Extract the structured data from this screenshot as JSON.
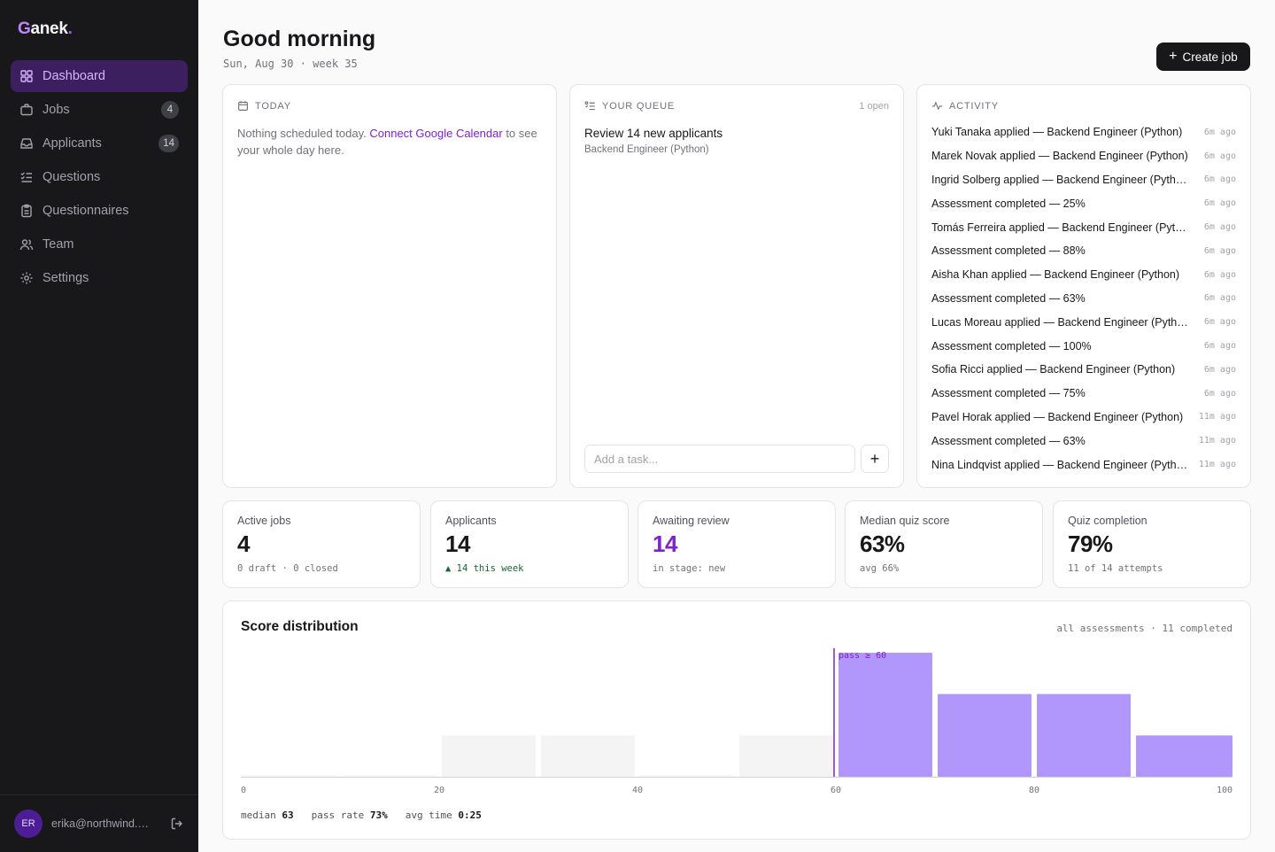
{
  "app": {
    "logo_first": "G",
    "logo_rest": "anek",
    "logo_dot": "."
  },
  "sidebar": {
    "items": [
      {
        "label": "Dashboard",
        "icon": "grid-icon",
        "active": true
      },
      {
        "label": "Jobs",
        "icon": "briefcase-icon",
        "count": "4"
      },
      {
        "label": "Applicants",
        "icon": "inbox-icon",
        "count": "14"
      },
      {
        "label": "Questions",
        "icon": "list-checks-icon"
      },
      {
        "label": "Questionnaires",
        "icon": "clipboard-icon"
      },
      {
        "label": "Team",
        "icon": "users-icon"
      },
      {
        "label": "Settings",
        "icon": "gear-icon"
      }
    ],
    "user": {
      "initials": "ER",
      "email": "erika@northwind.e..."
    }
  },
  "header": {
    "greeting": "Good morning",
    "date": "Sun, Aug 30 · week 35",
    "create_label": "Create job"
  },
  "today": {
    "heading": "TODAY",
    "text_before": "Nothing scheduled today. ",
    "link": "Connect Google Calendar",
    "text_after": " to see your whole day here."
  },
  "queue": {
    "heading": "YOUR QUEUE",
    "open_count": "1 open",
    "item_title": "Review 14 new applicants",
    "item_sub": "Backend Engineer (Python)",
    "task_placeholder": "Add a task...",
    "add_label": "+"
  },
  "activity": {
    "heading": "ACTIVITY",
    "items": [
      {
        "text": "Yuki Tanaka applied — Backend Engineer (Python)",
        "time": "6m ago"
      },
      {
        "text": "Marek Novak applied — Backend Engineer (Python)",
        "time": "6m ago"
      },
      {
        "text": "Ingrid Solberg applied — Backend Engineer (Python)",
        "time": "6m ago"
      },
      {
        "text": "Assessment completed — 25%",
        "time": "6m ago"
      },
      {
        "text": "Tomás Ferreira applied — Backend Engineer (Python)",
        "time": "6m ago"
      },
      {
        "text": "Assessment completed — 88%",
        "time": "6m ago"
      },
      {
        "text": "Aisha Khan applied — Backend Engineer (Python)",
        "time": "6m ago"
      },
      {
        "text": "Assessment completed — 63%",
        "time": "6m ago"
      },
      {
        "text": "Lucas Moreau applied — Backend Engineer (Python)",
        "time": "6m ago"
      },
      {
        "text": "Assessment completed — 100%",
        "time": "6m ago"
      },
      {
        "text": "Sofia Ricci applied — Backend Engineer (Python)",
        "time": "6m ago"
      },
      {
        "text": "Assessment completed — 75%",
        "time": "6m ago"
      },
      {
        "text": "Pavel Horak applied — Backend Engineer (Python)",
        "time": "11m ago"
      },
      {
        "text": "Assessment completed — 63%",
        "time": "11m ago"
      },
      {
        "text": "Nina Lindqvist applied — Backend Engineer (Python)",
        "time": "11m ago"
      }
    ]
  },
  "stats": [
    {
      "label": "Active jobs",
      "value": "4",
      "sub": "0 draft · 0 closed"
    },
    {
      "label": "Applicants",
      "value": "14",
      "sub": "▲ 14 this week"
    },
    {
      "label": "Awaiting review",
      "value": "14",
      "sub": "in stage: new"
    },
    {
      "label": "Median quiz score",
      "value": "63%",
      "sub": "avg 66%"
    },
    {
      "label": "Quiz completion",
      "value": "79%",
      "sub": "11 of 14 attempts"
    }
  ],
  "colors": {
    "accent": "#7e22ce",
    "bar_pass": "#b197fc",
    "bar_fail": "#f4f4f5",
    "sidebar_bg": "#18181b"
  },
  "chart_data": {
    "type": "bar",
    "title": "Score distribution",
    "meta": "all assessments · 11 completed",
    "bins": [
      "0-10",
      "10-20",
      "20-30",
      "30-40",
      "40-50",
      "50-60",
      "60-70",
      "70-80",
      "80-90",
      "90-100"
    ],
    "values": [
      0,
      0,
      1,
      1,
      0,
      1,
      3,
      2,
      2,
      1
    ],
    "xticks": [
      "0",
      "20",
      "40",
      "60",
      "80",
      "100"
    ],
    "xlim": [
      0,
      100
    ],
    "threshold": 60,
    "threshold_label": "pass ≥ 60",
    "footer": {
      "median_label": "median",
      "median": "63",
      "pass_label": "pass rate",
      "pass": "73%",
      "time_label": "avg time",
      "time": "0:25"
    }
  }
}
